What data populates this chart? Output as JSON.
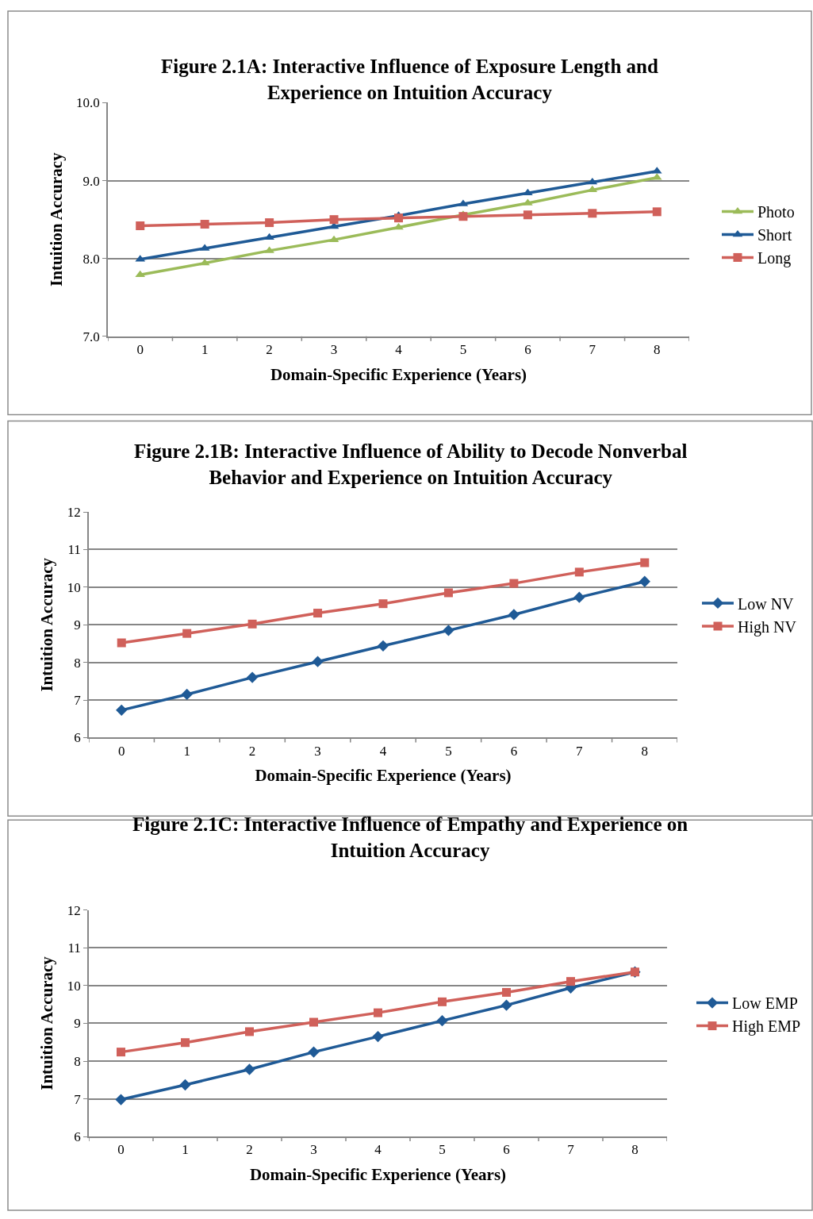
{
  "chart_data": [
    {
      "type": "line",
      "title": "Figure 2.1A: Interactive Influence of Exposure Length and\nExperience on Intuition Accuracy",
      "xlabel": "Domain-Specific Experience (Years)",
      "ylabel": "Intuition Accuracy",
      "categories": [
        "0",
        "1",
        "2",
        "3",
        "4",
        "5",
        "6",
        "7",
        "8"
      ],
      "ylim": [
        7,
        10
      ],
      "yticks": [
        {
          "value": 7,
          "label": "7.0"
        },
        {
          "value": 8,
          "label": "8.0"
        },
        {
          "value": 9,
          "label": "9.0"
        },
        {
          "value": 10,
          "label": "10.0"
        }
      ],
      "grid": "y",
      "legend": "right",
      "line_style": "solid",
      "series": [
        {
          "name": "Photo",
          "color": "#9bbb59",
          "marker": "triangle",
          "values": [
            7.79,
            7.94,
            8.1,
            8.24,
            8.4,
            8.56,
            8.71,
            8.88,
            9.04
          ]
        },
        {
          "name": "Short",
          "color": "#1f5a96",
          "marker": "triangle",
          "values": [
            7.99,
            8.13,
            8.27,
            8.41,
            8.55,
            8.7,
            8.84,
            8.98,
            9.12
          ]
        },
        {
          "name": "Long",
          "color": "#d0605a",
          "marker": "square",
          "values": [
            8.42,
            8.44,
            8.46,
            8.5,
            8.52,
            8.54,
            8.56,
            8.58,
            8.6
          ]
        }
      ]
    },
    {
      "type": "line",
      "title": "Figure 2.1B: Interactive Influence of Ability to Decode Nonverbal\nBehavior and Experience on Intuition Accuracy",
      "xlabel": "Domain-Specific Experience (Years)",
      "ylabel": "Intuition Accuracy",
      "categories": [
        "0",
        "1",
        "2",
        "3",
        "4",
        "5",
        "6",
        "7",
        "8"
      ],
      "ylim": [
        6,
        12
      ],
      "yticks": [
        6,
        7,
        8,
        9,
        10,
        11,
        12
      ],
      "grid": "y",
      "legend": "right",
      "line_style": "solid",
      "series": [
        {
          "name": "Low NV",
          "color": "#1f5a96",
          "marker": "diamond",
          "values": [
            6.73,
            7.15,
            7.6,
            8.02,
            8.44,
            8.85,
            9.27,
            9.73,
            10.15
          ]
        },
        {
          "name": "High NV",
          "color": "#d0605a",
          "marker": "square",
          "values": [
            8.52,
            8.77,
            9.02,
            9.31,
            9.56,
            9.85,
            10.1,
            10.4,
            10.65
          ]
        }
      ]
    },
    {
      "type": "line",
      "title": "Figure 2.1C: Interactive Influence of Empathy and Experience on\nIntuition Accuracy",
      "xlabel": "Domain-Specific Experience (Years)",
      "ylabel": "Intuition Accuracy",
      "categories": [
        "0",
        "1",
        "2",
        "3",
        "4",
        "5",
        "6",
        "7",
        "8"
      ],
      "ylim": [
        6,
        12
      ],
      "yticks": [
        6,
        7,
        8,
        9,
        10,
        11,
        12
      ],
      "grid": "y",
      "legend": "right",
      "line_style": "solid",
      "series": [
        {
          "name": "Low EMP",
          "color": "#1f5a96",
          "marker": "diamond",
          "values": [
            6.98,
            7.37,
            7.78,
            8.24,
            8.65,
            9.07,
            9.48,
            9.94,
            10.36
          ]
        },
        {
          "name": "High EMP",
          "color": "#d0605a",
          "marker": "square",
          "values": [
            8.24,
            8.49,
            8.78,
            9.03,
            9.28,
            9.57,
            9.82,
            10.11,
            10.36
          ]
        }
      ]
    }
  ]
}
